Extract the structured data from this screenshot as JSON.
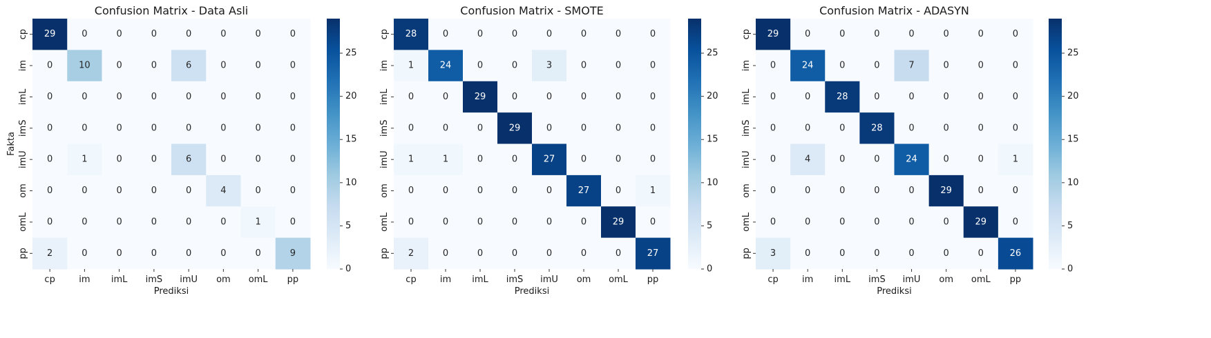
{
  "chart_data": [
    {
      "type": "heatmap",
      "title": "Confusion Matrix - Data Asli",
      "xlabel": "Prediksi",
      "ylabel": "Fakta",
      "labels": [
        "cp",
        "im",
        "imL",
        "imS",
        "imU",
        "om",
        "omL",
        "pp"
      ],
      "matrix": [
        [
          29,
          0,
          0,
          0,
          0,
          0,
          0,
          0
        ],
        [
          0,
          10,
          0,
          0,
          6,
          0,
          0,
          0
        ],
        [
          0,
          0,
          0,
          0,
          0,
          0,
          0,
          0
        ],
        [
          0,
          0,
          0,
          0,
          0,
          0,
          0,
          0
        ],
        [
          0,
          1,
          0,
          0,
          6,
          0,
          0,
          0
        ],
        [
          0,
          0,
          0,
          0,
          0,
          4,
          0,
          0
        ],
        [
          0,
          0,
          0,
          0,
          0,
          0,
          1,
          0
        ],
        [
          2,
          0,
          0,
          0,
          0,
          0,
          0,
          9
        ]
      ],
      "colorbar": {
        "min": 0,
        "max": 29,
        "ticks": [
          0,
          5,
          10,
          15,
          20,
          25
        ],
        "colormap": "Blues"
      }
    },
    {
      "type": "heatmap",
      "title": "Confusion Matrix - SMOTE",
      "xlabel": "Prediksi",
      "ylabel": "",
      "labels": [
        "cp",
        "im",
        "imL",
        "imS",
        "imU",
        "om",
        "omL",
        "pp"
      ],
      "matrix": [
        [
          28,
          0,
          0,
          0,
          0,
          0,
          0,
          0
        ],
        [
          1,
          24,
          0,
          0,
          3,
          0,
          0,
          0
        ],
        [
          0,
          0,
          29,
          0,
          0,
          0,
          0,
          0
        ],
        [
          0,
          0,
          0,
          29,
          0,
          0,
          0,
          0
        ],
        [
          1,
          1,
          0,
          0,
          27,
          0,
          0,
          0
        ],
        [
          0,
          0,
          0,
          0,
          0,
          27,
          0,
          1
        ],
        [
          0,
          0,
          0,
          0,
          0,
          0,
          29,
          0
        ],
        [
          2,
          0,
          0,
          0,
          0,
          0,
          0,
          27
        ]
      ],
      "colorbar": {
        "min": 0,
        "max": 29,
        "ticks": [
          0,
          5,
          10,
          15,
          20,
          25
        ],
        "colormap": "Blues"
      }
    },
    {
      "type": "heatmap",
      "title": "Confusion Matrix - ADASYN",
      "xlabel": "Prediksi",
      "ylabel": "",
      "labels": [
        "cp",
        "im",
        "imL",
        "imS",
        "imU",
        "om",
        "omL",
        "pp"
      ],
      "matrix": [
        [
          29,
          0,
          0,
          0,
          0,
          0,
          0,
          0
        ],
        [
          0,
          24,
          0,
          0,
          7,
          0,
          0,
          0
        ],
        [
          0,
          0,
          28,
          0,
          0,
          0,
          0,
          0
        ],
        [
          0,
          0,
          0,
          28,
          0,
          0,
          0,
          0
        ],
        [
          0,
          4,
          0,
          0,
          24,
          0,
          0,
          1
        ],
        [
          0,
          0,
          0,
          0,
          0,
          29,
          0,
          0
        ],
        [
          0,
          0,
          0,
          0,
          0,
          0,
          29,
          0
        ],
        [
          3,
          0,
          0,
          0,
          0,
          0,
          0,
          26
        ]
      ],
      "colorbar": {
        "min": 0,
        "max": 29,
        "ticks": [
          0,
          5,
          10,
          15,
          20,
          25
        ],
        "colormap": "Blues"
      }
    }
  ]
}
